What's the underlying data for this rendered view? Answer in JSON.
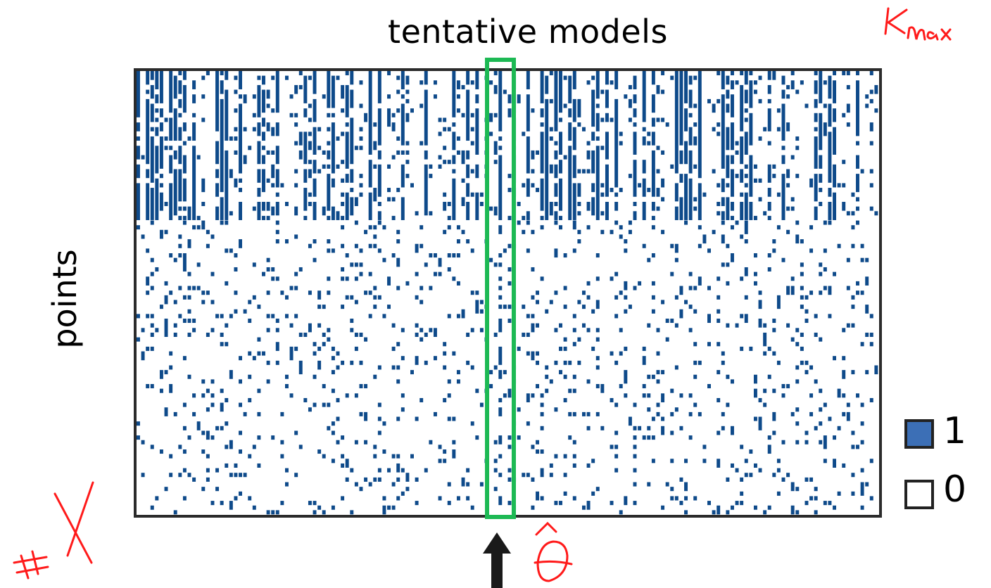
{
  "title": "tentative models",
  "ylabel": "points",
  "legend": [
    {
      "label": "1",
      "color": "#3c6fb6"
    },
    {
      "label": "0",
      "color": "#ffffff"
    }
  ],
  "colors": {
    "filled_cell": "#0e4a8a",
    "highlight": "#1db954",
    "annotation": "#ff1a1a",
    "frame": "#2b2b2b"
  },
  "matrix": {
    "columns": 160,
    "rows": 95,
    "dense_rows": 32,
    "highlight_column": 78
  },
  "annotations": {
    "kmax": "Kmax",
    "hash_x": "#X",
    "theta_hat": "θ̂"
  }
}
